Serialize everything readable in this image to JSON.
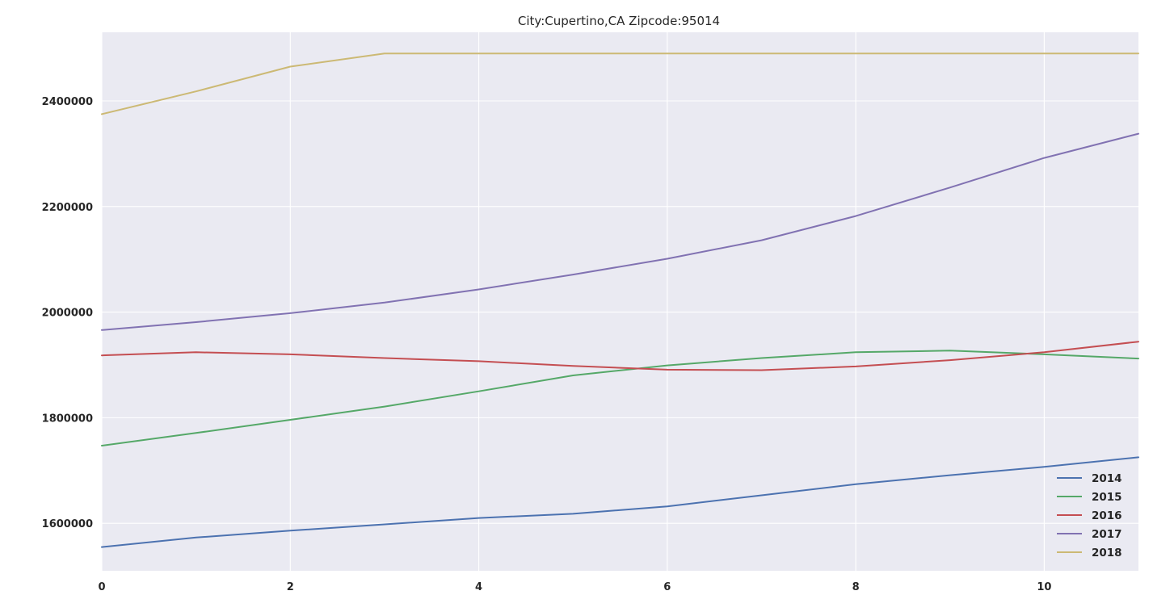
{
  "chart_data": {
    "type": "line",
    "title": "City:Cupertino,CA   Zipcode:95014",
    "xlabel": "",
    "ylabel": "",
    "x": [
      0,
      1,
      2,
      3,
      4,
      5,
      6,
      7,
      8,
      9,
      10,
      11
    ],
    "xlim": [
      0,
      11
    ],
    "ylim": [
      1510000,
      2530000
    ],
    "x_ticks": [
      0,
      2,
      4,
      6,
      8,
      10
    ],
    "y_ticks": [
      1600000,
      1800000,
      2000000,
      2200000,
      2400000
    ],
    "x_tick_labels": [
      "0",
      "2",
      "4",
      "6",
      "8",
      "10"
    ],
    "y_tick_labels": [
      "1600000",
      "1800000",
      "2000000",
      "2200000",
      "2400000"
    ],
    "grid": true,
    "background": "#eaeaf2",
    "legend_position": "bottom-right",
    "series": [
      {
        "name": "2014",
        "color": "#4c72b0",
        "values": [
          1555000,
          1573000,
          1586000,
          1598000,
          1610000,
          1618000,
          1632000,
          1653000,
          1674000,
          1691000,
          1707000,
          1725000
        ]
      },
      {
        "name": "2015",
        "color": "#55a868",
        "values": [
          1747000,
          1771000,
          1796000,
          1821000,
          1850000,
          1880000,
          1899000,
          1913000,
          1924000,
          1927000,
          1920000,
          1912000
        ]
      },
      {
        "name": "2016",
        "color": "#c44e52",
        "values": [
          1918000,
          1924000,
          1920000,
          1913000,
          1907000,
          1898000,
          1891000,
          1890000,
          1897000,
          1909000,
          1924000,
          1944000
        ]
      },
      {
        "name": "2017",
        "color": "#8172b2",
        "values": [
          1966000,
          1981000,
          1998000,
          2018000,
          2043000,
          2071000,
          2101000,
          2136000,
          2182000,
          2236000,
          2292000,
          2338000
        ]
      },
      {
        "name": "2018",
        "color": "#ccb974",
        "values": [
          2375000,
          2418000,
          2465000,
          2490000,
          2490000,
          2490000,
          2490000,
          2490000,
          2490000,
          2490000,
          2490000,
          2490000
        ]
      }
    ]
  }
}
